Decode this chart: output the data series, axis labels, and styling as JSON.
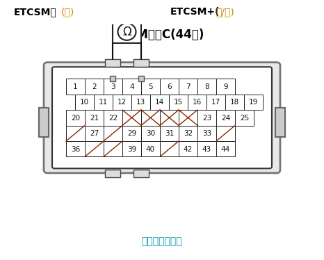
{
  "title": "PCM插头C(44芯)",
  "subtitle": "凹头插头端子侧",
  "subtitle_color": "#0099AA",
  "label_left_black": "ETCSM—(",
  "label_left_prefix": "ETCSM—",
  "label_left_paren_open": "(",
  "label_left_color": "黄",
  "label_left_paren_close": ")",
  "label_right_black": "ETCSM+(",
  "label_right_color": "黄/红",
  "label_right_paren_close": ")",
  "background": "#ffffff",
  "row1": [
    1,
    2,
    3,
    4,
    5,
    6,
    7,
    8,
    9
  ],
  "row2": [
    10,
    11,
    12,
    13,
    14,
    15,
    16,
    17,
    18,
    19
  ],
  "cross_color": "#8B2500",
  "cell_text_color": "#000000",
  "connector_outer_color": "#888888",
  "connector_inner_color": "#444444"
}
